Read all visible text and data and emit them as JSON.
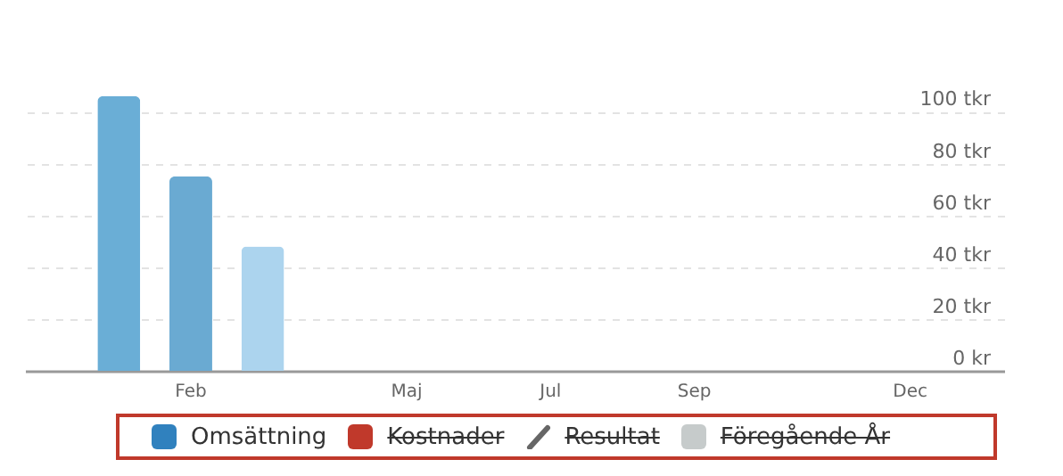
{
  "chart_data": {
    "type": "bar",
    "categories": [
      null,
      "Feb",
      null,
      null,
      "Maj",
      null,
      "Jul",
      null,
      "Sep",
      null,
      null,
      "Dec"
    ],
    "series": [
      {
        "name": "Omsättning",
        "color": "#3081be",
        "colors": [
          "#6aaed6",
          "#6aaad2",
          "#acd4ee",
          null,
          null,
          null,
          null,
          null,
          null,
          null,
          null,
          null
        ],
        "values": [
          106,
          75,
          48,
          null,
          null,
          null,
          null,
          null,
          null,
          null,
          null,
          null
        ]
      },
      {
        "name": "Kostnader",
        "color": "#c0392b",
        "values": [
          null,
          null,
          null,
          null,
          null,
          null,
          null,
          null,
          null,
          null,
          null,
          null
        ]
      },
      {
        "name": "Resultat",
        "type": "line",
        "color": "#666666",
        "values": [
          null,
          null,
          null,
          null,
          null,
          null,
          null,
          null,
          null,
          null,
          null,
          null
        ]
      },
      {
        "name": "Föregående År",
        "color": "#c6cbcb",
        "values": [
          null,
          null,
          null,
          null,
          null,
          null,
          null,
          null,
          null,
          null,
          null,
          null
        ]
      }
    ],
    "yticks": [
      {
        "value": 0,
        "label": "0 kr"
      },
      {
        "value": 20,
        "label": "20 tkr"
      },
      {
        "value": 40,
        "label": "40 tkr"
      },
      {
        "value": 60,
        "label": "60 tkr"
      },
      {
        "value": 80,
        "label": "80 tkr"
      },
      {
        "value": 100,
        "label": "100 tkr"
      }
    ],
    "ylim": [
      0,
      106
    ],
    "grid": "y",
    "legend": "bottom"
  }
}
